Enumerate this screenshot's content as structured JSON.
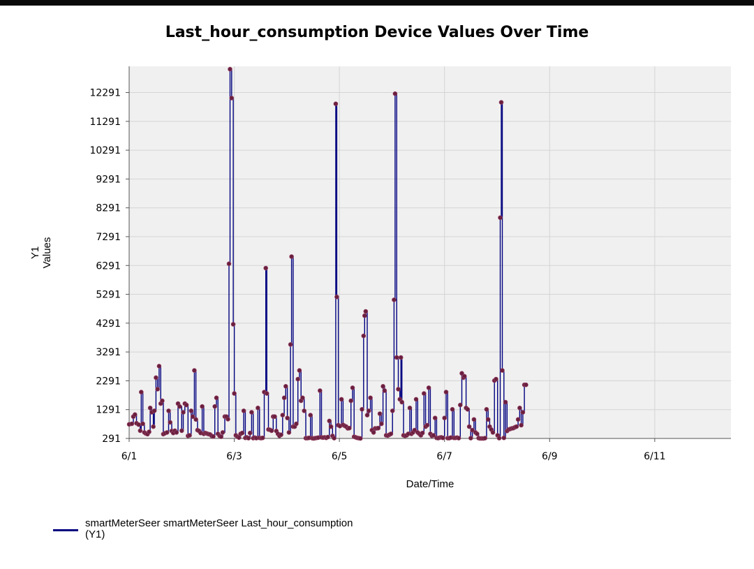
{
  "chart_data": {
    "type": "line",
    "title": "Last_hour_consumption Device Values Over Time",
    "xlabel": "Date/Time",
    "ylabel": "Y1\nValues",
    "ylabel_line1": "Y1",
    "ylabel_line2": "Values",
    "x_tick_labels": [
      "6/1",
      "6/3",
      "6/5",
      "6/7",
      "6/9",
      "6/11"
    ],
    "x_ticks_day": [
      1,
      3,
      5,
      7,
      9,
      11
    ],
    "y_ticks": [
      291,
      1291,
      2291,
      3291,
      4291,
      5291,
      6291,
      7291,
      8291,
      9291,
      10291,
      11291,
      12291
    ],
    "ylim": [
      291,
      13200
    ],
    "xlim_day": [
      1,
      12.45
    ],
    "grid": true,
    "legend_position": "bottom-left",
    "series": [
      {
        "name": "smartMeterSeer smartMeterSeer Last_hour_consumption (Y1)",
        "legend_line1": "smartMeterSeer smartMeterSeer Last_hour_consumption",
        "legend_line2": "(Y1)",
        "color": "#00007f",
        "marker_color": "#6b1f3f",
        "points_day_value": [
          [
            1.0,
            780
          ],
          [
            1.05,
            800
          ],
          [
            1.08,
            1050
          ],
          [
            1.11,
            1120
          ],
          [
            1.14,
            820
          ],
          [
            1.18,
            770
          ],
          [
            1.21,
            560
          ],
          [
            1.23,
            1900
          ],
          [
            1.26,
            800
          ],
          [
            1.29,
            500
          ],
          [
            1.32,
            460
          ],
          [
            1.35,
            440
          ],
          [
            1.38,
            520
          ],
          [
            1.4,
            1350
          ],
          [
            1.43,
            1200
          ],
          [
            1.46,
            700
          ],
          [
            1.48,
            1250
          ],
          [
            1.51,
            2400
          ],
          [
            1.54,
            2000
          ],
          [
            1.57,
            2800
          ],
          [
            1.6,
            1500
          ],
          [
            1.63,
            1600
          ],
          [
            1.65,
            440
          ],
          [
            1.68,
            470
          ],
          [
            1.72,
            500
          ],
          [
            1.75,
            1250
          ],
          [
            1.78,
            850
          ],
          [
            1.81,
            550
          ],
          [
            1.84,
            480
          ],
          [
            1.87,
            560
          ],
          [
            1.9,
            500
          ],
          [
            1.93,
            1500
          ],
          [
            1.96,
            1400
          ],
          [
            2.0,
            560
          ],
          [
            2.03,
            1200
          ],
          [
            2.06,
            1500
          ],
          [
            2.09,
            1450
          ],
          [
            2.12,
            380
          ],
          [
            2.15,
            400
          ],
          [
            2.18,
            1250
          ],
          [
            2.21,
            1050
          ],
          [
            2.24,
            2650
          ],
          [
            2.27,
            950
          ],
          [
            2.3,
            580
          ],
          [
            2.33,
            550
          ],
          [
            2.36,
            480
          ],
          [
            2.39,
            1400
          ],
          [
            2.42,
            450
          ],
          [
            2.45,
            480
          ],
          [
            2.48,
            460
          ],
          [
            2.51,
            440
          ],
          [
            2.54,
            430
          ],
          [
            2.57,
            380
          ],
          [
            2.6,
            360
          ],
          [
            2.63,
            1400
          ],
          [
            2.66,
            1700
          ],
          [
            2.69,
            450
          ],
          [
            2.72,
            380
          ],
          [
            2.75,
            350
          ],
          [
            2.78,
            500
          ],
          [
            2.82,
            1050
          ],
          [
            2.85,
            1050
          ],
          [
            2.88,
            960
          ],
          [
            2.9,
            6350
          ],
          [
            2.92,
            13100
          ],
          [
            2.95,
            12100
          ],
          [
            2.98,
            4250
          ],
          [
            3.0,
            1850
          ],
          [
            3.03,
            400
          ],
          [
            3.06,
            350
          ],
          [
            3.09,
            320
          ],
          [
            3.12,
            450
          ],
          [
            3.15,
            480
          ],
          [
            3.18,
            1250
          ],
          [
            3.21,
            310
          ],
          [
            3.24,
            330
          ],
          [
            3.27,
            300
          ],
          [
            3.3,
            480
          ],
          [
            3.33,
            1200
          ],
          [
            3.36,
            300
          ],
          [
            3.39,
            320
          ],
          [
            3.42,
            300
          ],
          [
            3.45,
            1350
          ],
          [
            3.48,
            310
          ],
          [
            3.51,
            300
          ],
          [
            3.54,
            310
          ],
          [
            3.57,
            1900
          ],
          [
            3.6,
            6200
          ],
          [
            3.62,
            1850
          ],
          [
            3.65,
            600
          ],
          [
            3.68,
            590
          ],
          [
            3.71,
            560
          ],
          [
            3.74,
            1050
          ],
          [
            3.77,
            1050
          ],
          [
            3.8,
            550
          ],
          [
            3.83,
            450
          ],
          [
            3.86,
            380
          ],
          [
            3.89,
            420
          ],
          [
            3.92,
            1100
          ],
          [
            3.95,
            1700
          ],
          [
            3.98,
            2100
          ],
          [
            4.01,
            1000
          ],
          [
            4.04,
            500
          ],
          [
            4.07,
            3550
          ],
          [
            4.09,
            6600
          ],
          [
            4.12,
            700
          ],
          [
            4.15,
            700
          ],
          [
            4.18,
            800
          ],
          [
            4.21,
            2350
          ],
          [
            4.24,
            2650
          ],
          [
            4.27,
            1600
          ],
          [
            4.3,
            1700
          ],
          [
            4.33,
            1250
          ],
          [
            4.36,
            300
          ],
          [
            4.39,
            300
          ],
          [
            4.42,
            310
          ],
          [
            4.45,
            1100
          ],
          [
            4.48,
            300
          ],
          [
            4.51,
            290
          ],
          [
            4.54,
            300
          ],
          [
            4.57,
            310
          ],
          [
            4.6,
            320
          ],
          [
            4.63,
            1950
          ],
          [
            4.66,
            330
          ],
          [
            4.69,
            320
          ],
          [
            4.72,
            330
          ],
          [
            4.75,
            310
          ],
          [
            4.78,
            340
          ],
          [
            4.81,
            900
          ],
          [
            4.84,
            700
          ],
          [
            4.87,
            380
          ],
          [
            4.9,
            300
          ],
          [
            4.93,
            11900
          ],
          [
            4.95,
            5200
          ],
          [
            4.98,
            750
          ],
          [
            5.01,
            720
          ],
          [
            5.04,
            1650
          ],
          [
            5.07,
            760
          ],
          [
            5.1,
            730
          ],
          [
            5.13,
            700
          ],
          [
            5.16,
            640
          ],
          [
            5.19,
            650
          ],
          [
            5.22,
            1600
          ],
          [
            5.25,
            2050
          ],
          [
            5.28,
            350
          ],
          [
            5.31,
            330
          ],
          [
            5.34,
            310
          ],
          [
            5.37,
            300
          ],
          [
            5.4,
            290
          ],
          [
            5.43,
            1300
          ],
          [
            5.46,
            3850
          ],
          [
            5.48,
            4550
          ],
          [
            5.5,
            4700
          ],
          [
            5.53,
            1100
          ],
          [
            5.56,
            1250
          ],
          [
            5.59,
            1700
          ],
          [
            5.62,
            580
          ],
          [
            5.65,
            500
          ],
          [
            5.68,
            640
          ],
          [
            5.71,
            640
          ],
          [
            5.74,
            650
          ],
          [
            5.77,
            1150
          ],
          [
            5.8,
            800
          ],
          [
            5.83,
            2100
          ],
          [
            5.86,
            1950
          ],
          [
            5.89,
            400
          ],
          [
            5.92,
            390
          ],
          [
            5.95,
            420
          ],
          [
            5.98,
            450
          ],
          [
            6.01,
            1250
          ],
          [
            6.04,
            5100
          ],
          [
            6.06,
            12250
          ],
          [
            6.09,
            3100
          ],
          [
            6.12,
            2000
          ],
          [
            6.15,
            1650
          ],
          [
            6.17,
            3100
          ],
          [
            6.19,
            1550
          ],
          [
            6.22,
            400
          ],
          [
            6.25,
            380
          ],
          [
            6.28,
            400
          ],
          [
            6.31,
            450
          ],
          [
            6.34,
            1350
          ],
          [
            6.37,
            450
          ],
          [
            6.4,
            500
          ],
          [
            6.43,
            580
          ],
          [
            6.46,
            1650
          ],
          [
            6.49,
            500
          ],
          [
            6.52,
            450
          ],
          [
            6.55,
            400
          ],
          [
            6.58,
            480
          ],
          [
            6.61,
            1850
          ],
          [
            6.64,
            700
          ],
          [
            6.67,
            750
          ],
          [
            6.7,
            2050
          ],
          [
            6.73,
            450
          ],
          [
            6.76,
            380
          ],
          [
            6.79,
            400
          ],
          [
            6.82,
            1000
          ],
          [
            6.85,
            310
          ],
          [
            6.88,
            300
          ],
          [
            6.91,
            320
          ],
          [
            6.94,
            330
          ],
          [
            6.97,
            310
          ],
          [
            7.0,
            1000
          ],
          [
            7.03,
            1900
          ],
          [
            7.06,
            300
          ],
          [
            7.09,
            300
          ],
          [
            7.12,
            320
          ],
          [
            7.15,
            1300
          ],
          [
            7.18,
            310
          ],
          [
            7.21,
            310
          ],
          [
            7.24,
            320
          ],
          [
            7.27,
            300
          ],
          [
            7.3,
            1450
          ],
          [
            7.33,
            2550
          ],
          [
            7.36,
            2400
          ],
          [
            7.38,
            2450
          ],
          [
            7.41,
            1350
          ],
          [
            7.44,
            1300
          ],
          [
            7.47,
            700
          ],
          [
            7.5,
            300
          ],
          [
            7.53,
            580
          ],
          [
            7.56,
            950
          ],
          [
            7.59,
            500
          ],
          [
            7.62,
            450
          ],
          [
            7.65,
            300
          ],
          [
            7.68,
            290
          ],
          [
            7.71,
            290
          ],
          [
            7.74,
            290
          ],
          [
            7.77,
            300
          ],
          [
            7.8,
            1300
          ],
          [
            7.83,
            950
          ],
          [
            7.86,
            700
          ],
          [
            7.89,
            600
          ],
          [
            7.92,
            500
          ],
          [
            7.95,
            2300
          ],
          [
            7.98,
            2350
          ],
          [
            8.01,
            400
          ],
          [
            8.04,
            300
          ],
          [
            8.06,
            7950
          ],
          [
            8.08,
            11950
          ],
          [
            8.1,
            2650
          ],
          [
            8.13,
            310
          ],
          [
            8.16,
            1550
          ],
          [
            8.19,
            550
          ],
          [
            8.22,
            600
          ],
          [
            8.25,
            620
          ],
          [
            8.28,
            640
          ],
          [
            8.31,
            650
          ],
          [
            8.34,
            680
          ],
          [
            8.37,
            700
          ],
          [
            8.4,
            950
          ],
          [
            8.43,
            1350
          ],
          [
            8.46,
            750
          ],
          [
            8.49,
            1200
          ],
          [
            8.52,
            2150
          ],
          [
            8.55,
            2150
          ]
        ]
      }
    ]
  }
}
